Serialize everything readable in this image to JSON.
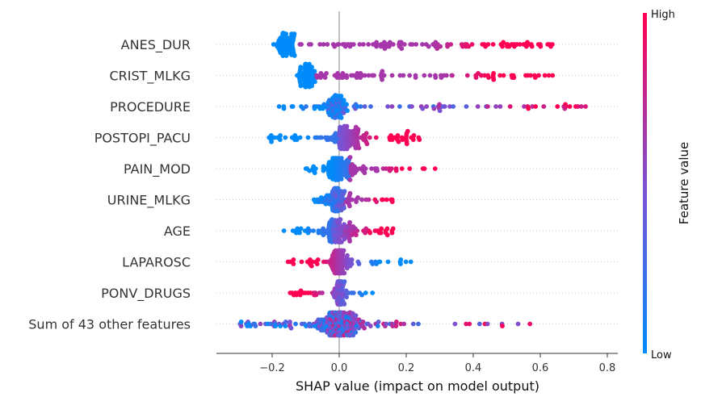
{
  "chart_data": {
    "type": "scatter",
    "subtype": "shap-beeswarm",
    "title": "",
    "xlabel": "SHAP value (impact on model output)",
    "xlim": [
      -0.37,
      0.83
    ],
    "xticks": [
      -0.2,
      0.0,
      0.2,
      0.4,
      0.6,
      0.8
    ],
    "xtick_labels": [
      "−0.2",
      "0.0",
      "0.2",
      "0.4",
      "0.6",
      "0.8"
    ],
    "colorbar": {
      "title": "Feature value",
      "high_label": "High",
      "low_label": "Low",
      "low_color": "#008bfb",
      "mid_color": "#7f4fd0",
      "high_color": "#ff0052"
    },
    "features": [
      {
        "name": "ANES_DUR",
        "count": 170,
        "core_min": -0.2,
        "core_max": -0.12,
        "mode": -0.16,
        "main_min": -0.23,
        "main_max": 0.1,
        "tail_max": 0.65,
        "tail_count": 80,
        "color_trend": 1
      },
      {
        "name": "CRIST_MLKG",
        "count": 150,
        "core_min": -0.14,
        "core_max": -0.06,
        "mode": -0.1,
        "main_min": -0.15,
        "main_max": 0.0,
        "tail_max": 0.65,
        "tail_count": 70,
        "color_trend": 1
      },
      {
        "name": "PROCEDURE",
        "count": 130,
        "core_min": -0.06,
        "core_max": 0.04,
        "mode": -0.01,
        "main_min": -0.18,
        "main_max": 0.05,
        "tail_max": 0.78,
        "tail_count": 45,
        "color_trend": 0.4
      },
      {
        "name": "POSTOPI_PACU",
        "count": 150,
        "core_min": -0.05,
        "core_max": 0.12,
        "mode": 0.02,
        "main_min": -0.21,
        "main_max": 0.15,
        "tail_max": 0.24,
        "tail_count": 25,
        "color_trend": 1
      },
      {
        "name": "PAIN_MOD",
        "count": 130,
        "core_min": -0.04,
        "core_max": 0.08,
        "mode": 0.0,
        "main_min": -0.12,
        "main_max": 0.12,
        "tail_max": 0.29,
        "tail_count": 12,
        "color_trend": 1
      },
      {
        "name": "URINE_MLKG",
        "count": 110,
        "core_min": -0.06,
        "core_max": 0.05,
        "mode": -0.01,
        "main_min": -0.09,
        "main_max": 0.08,
        "tail_max": 0.16,
        "tail_count": 10,
        "color_trend": 0.6
      },
      {
        "name": "AGE",
        "count": 140,
        "core_min": -0.06,
        "core_max": 0.08,
        "mode": 0.0,
        "main_min": -0.17,
        "main_max": 0.12,
        "tail_max": 0.18,
        "tail_count": 10,
        "color_trend": 0.8
      },
      {
        "name": "LAPAROSC",
        "count": 120,
        "core_min": -0.04,
        "core_max": 0.04,
        "mode": 0.0,
        "main_min": -0.16,
        "main_max": 0.1,
        "tail_max": 0.22,
        "tail_count": 10,
        "color_trend": -1
      },
      {
        "name": "PONV_DRUGS",
        "count": 90,
        "core_min": -0.02,
        "core_max": 0.03,
        "mode": 0.0,
        "main_min": -0.15,
        "main_max": 0.05,
        "tail_max": 0.14,
        "tail_count": 4,
        "color_trend": -0.8
      },
      {
        "name": "Sum of 43 other features",
        "count": 260,
        "core_min": -0.1,
        "core_max": 0.1,
        "mode": 0.0,
        "main_min": -0.32,
        "main_max": 0.2,
        "tail_max": 0.61,
        "tail_count": 12,
        "color_trend": 0.1
      }
    ]
  }
}
